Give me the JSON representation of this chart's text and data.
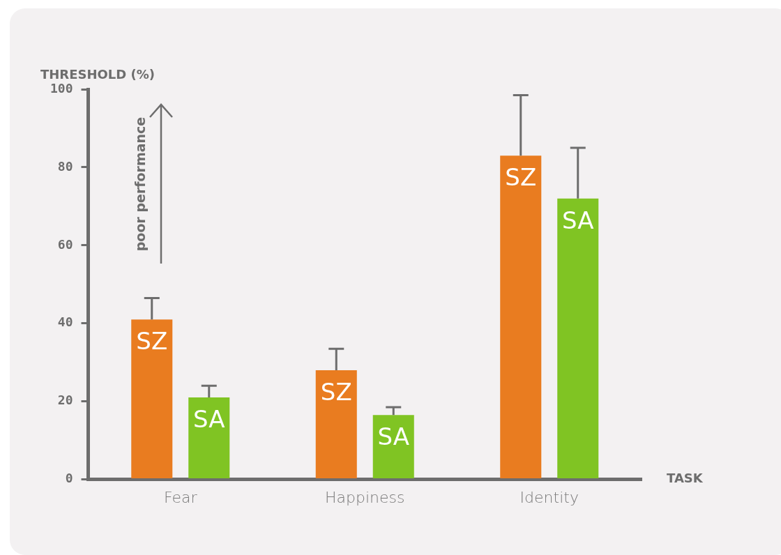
{
  "chart_data": {
    "type": "bar",
    "ylabel": "THRESHOLD (%)",
    "xlabel": "TASK",
    "categories": [
      "Fear",
      "Happiness",
      "Identity"
    ],
    "series": [
      {
        "name": "SZ",
        "color": "#e97c20",
        "values": [
          41,
          28,
          83
        ],
        "errors": [
          [
            41,
            46.5
          ],
          [
            28,
            33.5
          ],
          [
            83,
            98.5
          ]
        ]
      },
      {
        "name": "SA",
        "color": "#80c423",
        "values": [
          21,
          16.5,
          72
        ],
        "errors": [
          [
            21,
            24
          ],
          [
            16.5,
            18.5
          ],
          [
            72,
            85
          ]
        ]
      }
    ],
    "ylim": [
      0,
      100
    ],
    "yticks": [
      0,
      20,
      40,
      60,
      80,
      100
    ],
    "legend": false,
    "grid": false,
    "annotations": [
      "poor performance"
    ]
  }
}
